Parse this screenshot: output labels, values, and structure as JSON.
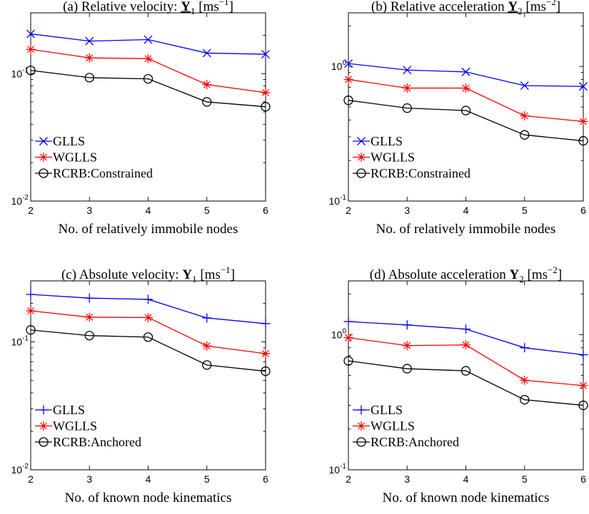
{
  "chart_data": [
    {
      "type": "line",
      "title": {
        "prefix": "(a) Relative velocity:",
        "symbol": "Y",
        "sub": "1",
        "unit_base": "[ms",
        "unit_exp": "−1",
        "unit_close": "]"
      },
      "xlabel": "No. of relatively immobile nodes",
      "ylabel": "",
      "scale": "log",
      "x": [
        2,
        3,
        4,
        5,
        6
      ],
      "xticks": [
        "2",
        "3",
        "4",
        "5",
        "6"
      ],
      "ylim": [
        0.01,
        0.3
      ],
      "yticks": [
        {
          "value": 0.1,
          "base": "10",
          "exp": "-1"
        },
        {
          "value": 0.01,
          "base": "10",
          "exp": "-2"
        }
      ],
      "legend_position": "bottom-left",
      "series": [
        {
          "name": "GLLS",
          "color": "#0000ff",
          "marker": "x",
          "values": [
            0.205,
            0.18,
            0.185,
            0.145,
            0.142
          ]
        },
        {
          "name": "WGLLS",
          "color": "#ff0000",
          "marker": "*",
          "values": [
            0.155,
            0.133,
            0.131,
            0.082,
            0.071
          ]
        },
        {
          "name": "RCRB:Constrained",
          "color": "#000000",
          "marker": "o",
          "values": [
            0.106,
            0.093,
            0.091,
            0.06,
            0.055
          ]
        }
      ]
    },
    {
      "type": "line",
      "title": {
        "prefix": "(b) Relative acceleration",
        "symbol": "Y",
        "sub": "2",
        "unit_base": "[ms",
        "unit_exp": "−2",
        "unit_close": "]"
      },
      "xlabel": "No. of relatively immobile nodes",
      "ylabel": "",
      "scale": "log",
      "x": [
        2,
        3,
        4,
        5,
        6
      ],
      "xticks": [
        "2",
        "3",
        "4",
        "5",
        "6"
      ],
      "ylim": [
        0.1,
        2.5
      ],
      "yticks": [
        {
          "value": 1,
          "base": "10",
          "exp": "0"
        },
        {
          "value": 0.1,
          "base": "10",
          "exp": "-1"
        }
      ],
      "legend_position": "bottom-left",
      "series": [
        {
          "name": "GLLS",
          "color": "#0000ff",
          "marker": "x",
          "values": [
            1.05,
            0.94,
            0.91,
            0.72,
            0.71
          ]
        },
        {
          "name": "WGLLS",
          "color": "#ff0000",
          "marker": "*",
          "values": [
            0.8,
            0.69,
            0.69,
            0.43,
            0.39
          ]
        },
        {
          "name": "RCRB:Constrained",
          "color": "#000000",
          "marker": "o",
          "values": [
            0.56,
            0.49,
            0.47,
            0.31,
            0.28
          ]
        }
      ]
    },
    {
      "type": "line",
      "title": {
        "prefix": "(c) Absolute velocity:",
        "symbol": "Y",
        "sub": "1",
        "unit_base": "[ms",
        "unit_exp": "−1",
        "unit_close": "]"
      },
      "xlabel": "No. of known node kinematics",
      "ylabel": "",
      "scale": "log",
      "x": [
        2,
        3,
        4,
        5,
        6
      ],
      "xticks": [
        "2",
        "3",
        "4",
        "5",
        "6"
      ],
      "ylim": [
        0.01,
        0.3
      ],
      "yticks": [
        {
          "value": 0.1,
          "base": "10",
          "exp": "-1"
        },
        {
          "value": 0.01,
          "base": "10",
          "exp": "-2"
        }
      ],
      "legend_position": "bottom-left",
      "series": [
        {
          "name": "GLLS",
          "color": "#0000ff",
          "marker": "+",
          "values": [
            0.235,
            0.22,
            0.215,
            0.154,
            0.139
          ]
        },
        {
          "name": "WGLLS",
          "color": "#ff0000",
          "marker": "*",
          "values": [
            0.175,
            0.156,
            0.155,
            0.093,
            0.081
          ]
        },
        {
          "name": "RCRB:Anchored",
          "color": "#000000",
          "marker": "o",
          "values": [
            0.124,
            0.112,
            0.109,
            0.066,
            0.059
          ]
        }
      ]
    },
    {
      "type": "line",
      "title": {
        "prefix": "(d) Absolute acceleration",
        "symbol": "Y",
        "sub": "2",
        "unit_base": "[ms",
        "unit_exp": "−2",
        "unit_close": "]"
      },
      "xlabel": "No. of known node kinematics",
      "ylabel": "",
      "scale": "log",
      "x": [
        2,
        3,
        4,
        5,
        6
      ],
      "xticks": [
        "2",
        "3",
        "4",
        "5",
        "6"
      ],
      "ylim": [
        0.1,
        2.5
      ],
      "yticks": [
        {
          "value": 1,
          "base": "10",
          "exp": "0"
        },
        {
          "value": 0.1,
          "base": "10",
          "exp": "-1"
        }
      ],
      "legend_position": "bottom-left",
      "series": [
        {
          "name": "GLLS",
          "color": "#0000ff",
          "marker": "+",
          "values": [
            1.25,
            1.18,
            1.1,
            0.8,
            0.71
          ]
        },
        {
          "name": "WGLLS",
          "color": "#ff0000",
          "marker": "*",
          "values": [
            0.95,
            0.83,
            0.84,
            0.46,
            0.42
          ]
        },
        {
          "name": "RCRB:Anchored",
          "color": "#000000",
          "marker": "o",
          "values": [
            0.64,
            0.56,
            0.54,
            0.33,
            0.3
          ]
        }
      ]
    }
  ]
}
